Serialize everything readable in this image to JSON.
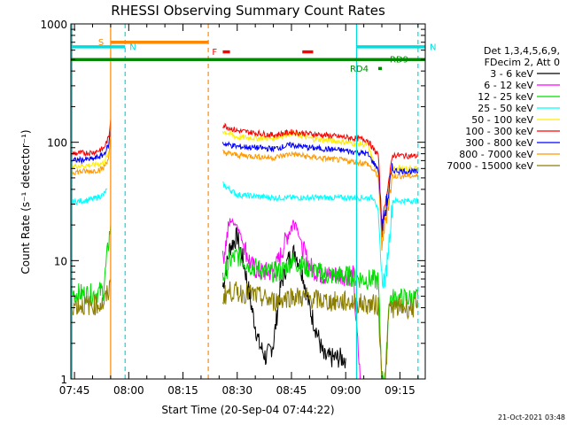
{
  "chart_data": {
    "type": "line",
    "title": "RHESSI Observing Summary Count Rates",
    "xlabel": "Start Time (20-Sep-04 07:44:22)",
    "ylabel": "Count Rate (s⁻¹ detector⁻¹)",
    "y_scale": "log",
    "ylim": [
      1,
      1000
    ],
    "xlim": [
      "07:44",
      "09:22"
    ],
    "x_ticks": [
      "07:45",
      "08:00",
      "08:15",
      "08:30",
      "08:45",
      "09:00",
      "09:15"
    ],
    "y_ticks": [
      "1",
      "10",
      "100",
      "1000"
    ],
    "timestamp": "21-Oct-2021 03:48",
    "legend_header": [
      "Det 1,3,4,5,6,9,",
      "FDecim 2, Att 0"
    ],
    "series": [
      {
        "name": "3 - 6 keV",
        "color": "#000000",
        "x": [
          "08:26",
          "08:28",
          "08:30",
          "08:32",
          "08:34",
          "08:36",
          "08:38",
          "08:40",
          "08:42",
          "08:44",
          "08:46",
          "08:48",
          "08:50",
          "08:52",
          "08:54",
          "08:56",
          "09:00"
        ],
        "y": [
          6,
          13,
          16,
          9,
          4,
          2,
          1.5,
          2,
          6,
          10,
          12,
          8,
          4,
          2.5,
          1.5,
          1.5,
          1.5
        ]
      },
      {
        "name": "6 - 12 keV",
        "color": "#ff00ff",
        "x": [
          "08:26",
          "08:28",
          "08:30",
          "08:32",
          "08:34",
          "08:36",
          "08:38",
          "08:40",
          "08:42",
          "08:44",
          "08:46",
          "08:48",
          "08:50",
          "08:52",
          "08:54",
          "08:58",
          "09:02",
          "09:04"
        ],
        "y": [
          10,
          22,
          20,
          13,
          9,
          8,
          8,
          8,
          11,
          17,
          22,
          13,
          9,
          8,
          7.5,
          7.5,
          7.5,
          1
        ]
      },
      {
        "name": "12 - 25 keV",
        "color": "#00dd00",
        "x": [
          "07:44",
          "07:50",
          "07:53",
          "07:54.5",
          "07:55",
          "08:26",
          "08:28",
          "08:30",
          "08:34",
          "08:38",
          "08:42",
          "08:45",
          "08:50",
          "08:55",
          "09:00",
          "09:05",
          "09:09",
          "09:10",
          "09:11",
          "09:12",
          "09:16",
          "09:20"
        ],
        "y": [
          5.3,
          5.2,
          5.6,
          15,
          20,
          7,
          10,
          11,
          9,
          8,
          8,
          10,
          8.5,
          7.5,
          7.5,
          7,
          6.8,
          1,
          1,
          4.8,
          4.8,
          4.8
        ]
      },
      {
        "name": "25 - 50 keV",
        "color": "#00ffff",
        "x": [
          "07:44",
          "07:50",
          "07:53",
          "07:54",
          "08:26",
          "08:30",
          "08:40",
          "08:50",
          "09:00",
          "09:08",
          "09:09",
          "09:10",
          "09:11",
          "09:13",
          "09:20"
        ],
        "y": [
          31,
          33,
          36,
          40,
          44,
          36,
          34,
          34,
          34,
          34,
          25,
          7,
          7,
          32,
          32
        ]
      },
      {
        "name": "50 - 100 keV",
        "color": "#ffee00",
        "x": [
          "07:44",
          "07:50",
          "07:53",
          "07:54.5",
          "07:55",
          "08:26",
          "08:30",
          "08:40",
          "08:45",
          "08:50",
          "09:00",
          "09:06",
          "09:08",
          "09:09",
          "09:10",
          "09:13",
          "09:20"
        ],
        "y": [
          63,
          64,
          67,
          80,
          100,
          125,
          110,
          108,
          120,
          108,
          100,
          95,
          63,
          55,
          16,
          60,
          60
        ]
      },
      {
        "name": "100 - 300 keV",
        "color": "#ff0000",
        "x": [
          "07:44",
          "07:50",
          "07:53",
          "07:54.5",
          "07:55",
          "08:26",
          "08:30",
          "08:40",
          "08:45",
          "08:50",
          "09:00",
          "09:06",
          "09:08",
          "09:09",
          "09:10",
          "09:13",
          "09:20"
        ],
        "y": [
          80,
          82,
          88,
          110,
          155,
          140,
          125,
          115,
          122,
          118,
          110,
          105,
          84,
          80,
          20,
          78,
          76
        ]
      },
      {
        "name": "300 - 800 keV",
        "color": "#0000ff",
        "x": [
          "07:44",
          "07:50",
          "07:53",
          "07:54.5",
          "07:55",
          "08:26",
          "08:30",
          "08:40",
          "08:45",
          "08:50",
          "09:00",
          "09:06",
          "09:08",
          "09:09",
          "09:10",
          "09:13",
          "09:20"
        ],
        "y": [
          70,
          72,
          78,
          95,
          130,
          98,
          92,
          88,
          95,
          90,
          85,
          80,
          65,
          60,
          18,
          58,
          56
        ]
      },
      {
        "name": "800 - 7000 keV",
        "color": "#ff9900",
        "x": [
          "07:44",
          "07:50",
          "07:53",
          "07:54.5",
          "07:55",
          "08:26",
          "08:30",
          "08:40",
          "08:45",
          "08:50",
          "09:00",
          "09:06",
          "09:08",
          "09:09",
          "09:10",
          "09:13",
          "09:20"
        ],
        "y": [
          56,
          57,
          60,
          75,
          110,
          82,
          78,
          74,
          80,
          75,
          70,
          66,
          56,
          52,
          14,
          52,
          52
        ]
      },
      {
        "name": "7000 - 15000 keV",
        "color": "#8b7d00",
        "x": [
          "07:44",
          "07:50",
          "07:53",
          "07:54.5",
          "07:55",
          "08:26",
          "08:28",
          "08:34",
          "08:40",
          "08:45",
          "08:50",
          "08:55",
          "09:00",
          "09:05",
          "09:09",
          "09:10",
          "09:11",
          "09:12",
          "09:20"
        ],
        "y": [
          4.2,
          4.2,
          4.3,
          5.5,
          6.5,
          5,
          5.5,
          5.2,
          4.5,
          5,
          4.8,
          4.5,
          4.5,
          4.3,
          4.2,
          1,
          1,
          4,
          4
        ]
      }
    ],
    "time_bands": [
      {
        "label": "S",
        "color": "#ff8800",
        "start": "07:55",
        "end": "08:22",
        "y": 700
      },
      {
        "label": "N",
        "color": "#00dddd",
        "start": "07:44",
        "end": "07:59",
        "y": 640
      },
      {
        "label": "N",
        "color": "#00dddd",
        "start": "09:03",
        "end": "09:22",
        "y": 640
      },
      {
        "label": "F",
        "color": "#ff0000",
        "start": "08:26",
        "end": "08:28",
        "y": 580
      },
      {
        "label": "",
        "color": "#ff0000",
        "start": "08:48",
        "end": "08:51",
        "y": 580
      },
      {
        "label": "RD9",
        "color": "#008800",
        "start": "07:44",
        "end": "09:22",
        "y": 500
      },
      {
        "label": "RD4",
        "color": "#008800",
        "start": "09:09",
        "end": "09:10",
        "y": 420
      }
    ],
    "vlines": [
      {
        "time": "07:44.3",
        "color": "#00dddd",
        "dash": false
      },
      {
        "time": "07:55",
        "color": "#ff8800",
        "dash": false
      },
      {
        "time": "07:59",
        "color": "#00dddd",
        "dash": true
      },
      {
        "time": "08:22",
        "color": "#ff8800",
        "dash": true
      },
      {
        "time": "09:03",
        "color": "#00dddd",
        "dash": false
      },
      {
        "time": "09:20",
        "color": "#00dddd",
        "dash": true
      }
    ]
  }
}
